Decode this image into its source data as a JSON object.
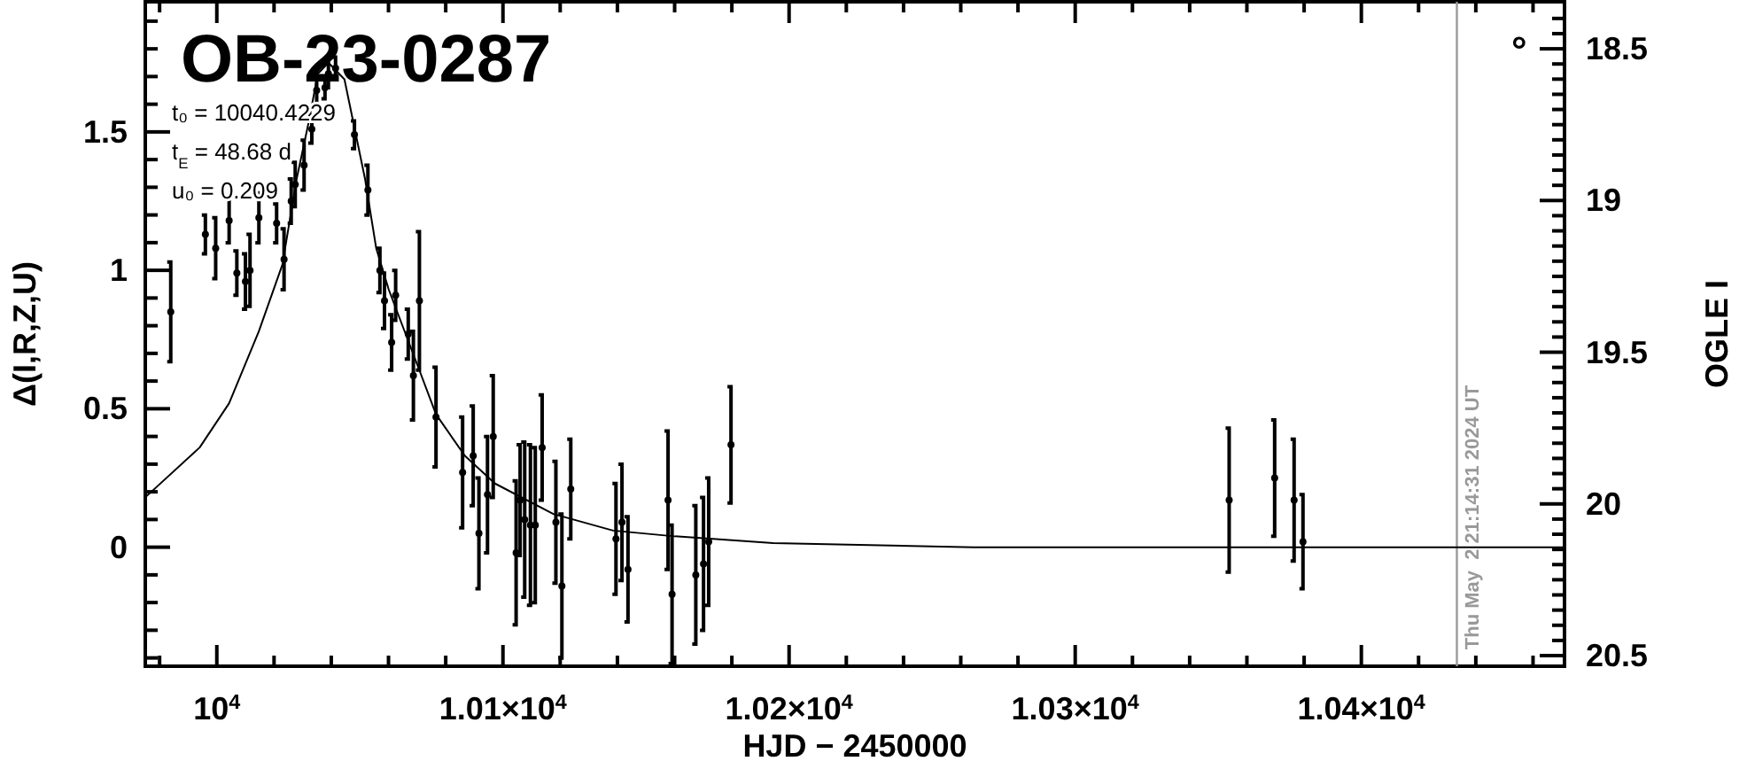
{
  "chart_data": {
    "type": "scatter",
    "title": "OB-23-0287",
    "annotations": [
      "t₀ = 10040.4229",
      "t$_{E}$ = 48.68 d",
      "u₀ = 0.209",
      "°",
      {
        "text": "Thu May  2 21:14:31 2024 UT",
        "x": 10433.385,
        "y": -0.37
      }
    ],
    "xlabel": "HJD − 2450000",
    "ylabel": "Δ(I,R,Z,U)",
    "y2label": "OGLE I",
    "xlim": [
      9975,
      10471
    ],
    "ylim": [
      -0.43,
      1.97
    ],
    "y2lim": [
      20.535,
      18.345
    ],
    "xticks": [
      {
        "value": 9980,
        "label": null
      },
      {
        "value": 10000,
        "label": "10$^{4}$"
      },
      {
        "value": 10020,
        "label": null
      },
      {
        "value": 10040,
        "label": null
      },
      {
        "value": 10060,
        "label": null
      },
      {
        "value": 10080,
        "label": null
      },
      {
        "value": 10100,
        "label": "1.01×10$^{4}$"
      },
      {
        "value": 10120,
        "label": null
      },
      {
        "value": 10140,
        "label": null
      },
      {
        "value": 10160,
        "label": null
      },
      {
        "value": 10180,
        "label": null
      },
      {
        "value": 10200,
        "label": "1.02×10$^{4}$"
      },
      {
        "value": 10220,
        "label": null
      },
      {
        "value": 10240,
        "label": null
      },
      {
        "value": 10260,
        "label": null
      },
      {
        "value": 10280,
        "label": null
      },
      {
        "value": 10300,
        "label": "1.03×10$^{4}$"
      },
      {
        "value": 10320,
        "label": null
      },
      {
        "value": 10340,
        "label": null
      },
      {
        "value": 10360,
        "label": null
      },
      {
        "value": 10380,
        "label": null
      },
      {
        "value": 10400,
        "label": "1.04×10$^{4}$"
      },
      {
        "value": 10420,
        "label": null
      },
      {
        "value": 10440,
        "label": null
      },
      {
        "value": 10460,
        "label": null
      }
    ],
    "yticks": [
      {
        "value": -0.4,
        "label": null
      },
      {
        "value": -0.3,
        "label": null
      },
      {
        "value": -0.2,
        "label": null
      },
      {
        "value": -0.1,
        "label": null
      },
      0,
      {
        "value": 0.1,
        "label": null
      },
      {
        "value": 0.2,
        "label": null
      },
      {
        "value": 0.3,
        "label": null
      },
      {
        "value": 0.4,
        "label": null
      },
      0.5,
      {
        "value": 0.6,
        "label": null
      },
      {
        "value": 0.7,
        "label": null
      },
      {
        "value": 0.8,
        "label": null
      },
      {
        "value": 0.9,
        "label": null
      },
      1,
      {
        "value": 1.1,
        "label": null
      },
      {
        "value": 1.2,
        "label": null
      },
      {
        "value": 1.3,
        "label": null
      },
      {
        "value": 1.4,
        "label": null
      },
      1.5,
      {
        "value": 1.6,
        "label": null
      },
      {
        "value": 1.7,
        "label": null
      },
      {
        "value": 1.8,
        "label": null
      },
      {
        "value": 1.9,
        "label": null
      }
    ],
    "y2ticks": [
      {
        "value": 18.4,
        "label": null
      },
      {
        "value": 18.45,
        "label": null
      },
      18.5,
      {
        "value": 18.55,
        "label": null
      },
      {
        "value": 18.6,
        "label": null
      },
      {
        "value": 18.65,
        "label": null
      },
      {
        "value": 18.7,
        "label": null
      },
      {
        "value": 18.75,
        "label": null
      },
      {
        "value": 18.8,
        "label": null
      },
      {
        "value": 18.85,
        "label": null
      },
      {
        "value": 18.9,
        "label": null
      },
      {
        "value": 18.95,
        "label": null
      },
      19,
      {
        "value": 19.05,
        "label": null
      },
      {
        "value": 19.1,
        "label": null
      },
      {
        "value": 19.15,
        "label": null
      },
      {
        "value": 19.2,
        "label": null
      },
      {
        "value": 19.25,
        "label": null
      },
      {
        "value": 19.3,
        "label": null
      },
      {
        "value": 19.35,
        "label": null
      },
      {
        "value": 19.4,
        "label": null
      },
      {
        "value": 19.45,
        "label": null
      },
      19.5,
      {
        "value": 19.55,
        "label": null
      },
      {
        "value": 19.6,
        "label": null
      },
      {
        "value": 19.65,
        "label": null
      },
      {
        "value": 19.7,
        "label": null
      },
      {
        "value": 19.75,
        "label": null
      },
      {
        "value": 19.8,
        "label": null
      },
      {
        "value": 19.85,
        "label": null
      },
      {
        "value": 19.9,
        "label": null
      },
      {
        "value": 19.95,
        "label": null
      },
      20,
      {
        "value": 20.05,
        "label": null
      },
      {
        "value": 20.1,
        "label": null
      },
      {
        "value": 20.15,
        "label": null
      },
      {
        "value": 20.2,
        "label": null
      },
      {
        "value": 20.25,
        "label": null
      },
      {
        "value": 20.3,
        "label": null
      },
      {
        "value": 20.35,
        "label": null
      },
      {
        "value": 20.4,
        "label": null
      },
      {
        "value": 20.45,
        "label": null
      },
      20.5
    ],
    "ref_lines": [
      {
        "axis": "x",
        "value": 10433.385,
        "color": "#999999"
      }
    ],
    "marker": "circle",
    "series": [
      {
        "type": "line",
        "marker": "none",
        "color": "#000000",
        "x": [
          9975,
          9994,
          10004.3,
          10014.7,
          10022.9,
          10027.9,
          10032.2,
          10035.3,
          10039,
          10044.6,
          10051.8,
          10055.7,
          10060.1,
          10070.4,
          10076.6,
          10086.7,
          10097.2,
          10117.6,
          10138.5,
          10159.1,
          10194.4,
          10264.4,
          10471
        ],
        "values": [
          0.18,
          0.36,
          0.52,
          0.78,
          1.02,
          1.33,
          1.54,
          1.71,
          1.75,
          1.69,
          1.33,
          1.08,
          0.93,
          0.65,
          0.48,
          0.33,
          0.23,
          0.12,
          0.06,
          0.04,
          0.015,
          0,
          0
        ]
      },
      {
        "color": "#000000",
        "x": [
          9983.9,
          9996,
          9999.6,
          10004.3,
          10007,
          10010,
          10011.6,
          10014.7,
          10020.9,
          10023.5,
          10026,
          10027.4,
          10030.5,
          10033.2,
          10034.9,
          10037.8,
          10039,
          10041.5,
          10048.1,
          10052.8,
          10057,
          10058.6,
          10061.1,
          10062.5,
          10066.9,
          10068.7,
          10070.8,
          10076.6,
          10085.9,
          10089.6,
          10091.6,
          10094.6,
          10096.6,
          10104.6,
          10106,
          10107.6,
          10109.6,
          10111.3,
          10113.7,
          10118.5,
          10120.6,
          10123.7,
          10139.5,
          10141.6,
          10143.7,
          10157.7,
          10159.1,
          10167.4,
          10170.1,
          10171.9,
          10179.7,
          10353.8,
          10369.7,
          10376.5,
          10379.6
        ],
        "values": [
          0.85,
          1.13,
          1.08,
          1.18,
          0.99,
          0.96,
          1.0,
          1.19,
          1.17,
          1.04,
          1.25,
          1.31,
          1.38,
          1.51,
          1.65,
          1.66,
          1.71,
          1.73,
          1.49,
          1.29,
          1.0,
          0.89,
          0.74,
          0.91,
          0.77,
          0.62,
          0.89,
          0.47,
          0.27,
          0.33,
          0.05,
          0.19,
          0.4,
          -0.02,
          0.17,
          0.1,
          0.08,
          0.08,
          0.36,
          0.09,
          -0.14,
          0.21,
          0.03,
          0.09,
          -0.08,
          0.17,
          -0.17,
          -0.1,
          -0.06,
          0.02,
          0.37,
          0.17,
          0.25,
          0.17,
          0.02
        ],
        "errors": [
          0.18,
          0.07,
          0.11,
          0.08,
          0.08,
          0.1,
          0.13,
          0.09,
          0.07,
          0.11,
          0.08,
          0.08,
          0.09,
          0.05,
          0.05,
          0.04,
          0.05,
          0.04,
          0.05,
          0.09,
          0.08,
          0.1,
          0.1,
          0.09,
          0.09,
          0.16,
          0.25,
          0.18,
          0.2,
          0.18,
          0.2,
          0.21,
          0.22,
          0.26,
          0.2,
          0.28,
          0.29,
          0.28,
          0.19,
          0.22,
          0.26,
          0.18,
          0.2,
          0.21,
          0.19,
          0.25,
          0.25,
          0.25,
          0.24,
          0.23,
          0.21,
          0.26,
          0.21,
          0.22,
          0.17
        ]
      }
    ]
  }
}
